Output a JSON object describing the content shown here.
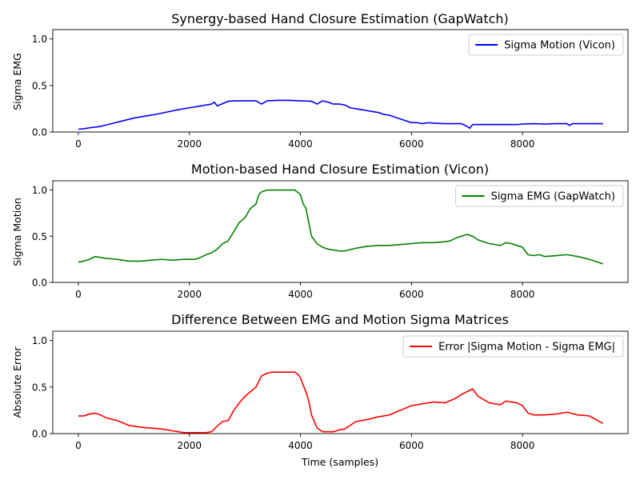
{
  "chart_data": [
    {
      "type": "line",
      "title": "Synergy-based Hand Closure Estimation (GapWatch)",
      "xlabel": "",
      "ylabel": "Sigma EMG",
      "xlim": [
        -460,
        9900
      ],
      "ylim": [
        0,
        1.1
      ],
      "xticks": [
        "0",
        "2000",
        "4000",
        "6000",
        "8000"
      ],
      "yticks": [
        "0.0",
        "0.5",
        "1.0"
      ],
      "legend_position": "upper right",
      "series": [
        {
          "name": "Sigma Motion (Vicon)",
          "color": "#0000ff",
          "x": [
            0,
            100,
            200,
            400,
            600,
            800,
            1000,
            1200,
            1400,
            1600,
            1800,
            2000,
            2200,
            2400,
            2450,
            2500,
            2600,
            2700,
            2800,
            3000,
            3200,
            3300,
            3400,
            3600,
            3800,
            4000,
            4200,
            4300,
            4400,
            4500,
            4600,
            4700,
            4800,
            4900,
            5000,
            5100,
            5200,
            5300,
            5400,
            5500,
            5600,
            5700,
            5800,
            5900,
            6000,
            6100,
            6200,
            6300,
            6400,
            6600,
            6800,
            6900,
            7000,
            7050,
            7100,
            7300,
            7500,
            7700,
            7900,
            8000,
            8200,
            8400,
            8600,
            8800,
            8850,
            8900,
            9000,
            9200,
            9450
          ],
          "y": [
            0.03,
            0.035,
            0.045,
            0.06,
            0.09,
            0.12,
            0.15,
            0.17,
            0.19,
            0.215,
            0.24,
            0.26,
            0.28,
            0.3,
            0.32,
            0.28,
            0.305,
            0.33,
            0.335,
            0.335,
            0.335,
            0.3,
            0.335,
            0.34,
            0.34,
            0.335,
            0.33,
            0.3,
            0.335,
            0.32,
            0.3,
            0.3,
            0.29,
            0.26,
            0.25,
            0.24,
            0.23,
            0.22,
            0.21,
            0.19,
            0.18,
            0.16,
            0.14,
            0.12,
            0.1,
            0.1,
            0.09,
            0.1,
            0.095,
            0.09,
            0.09,
            0.09,
            0.06,
            0.04,
            0.08,
            0.08,
            0.08,
            0.08,
            0.08,
            0.085,
            0.09,
            0.085,
            0.09,
            0.09,
            0.07,
            0.09,
            0.09,
            0.09,
            0.09
          ]
        }
      ]
    },
    {
      "type": "line",
      "title": "Motion-based Hand Closure Estimation (Vicon)",
      "xlabel": "",
      "ylabel": "Sigma Motion",
      "xlim": [
        -460,
        9900
      ],
      "ylim": [
        0,
        1.1
      ],
      "xticks": [
        "0",
        "2000",
        "4000",
        "6000",
        "8000"
      ],
      "yticks": [
        "0.0",
        "0.5",
        "1.0"
      ],
      "legend_position": "upper right",
      "series": [
        {
          "name": "Sigma EMG (GapWatch)",
          "color": "#008000",
          "x": [
            0,
            100,
            200,
            300,
            400,
            500,
            700,
            900,
            1100,
            1300,
            1500,
            1700,
            1900,
            2100,
            2200,
            2300,
            2400,
            2500,
            2600,
            2700,
            2800,
            2900,
            3000,
            3100,
            3200,
            3250,
            3300,
            3400,
            3500,
            3600,
            3700,
            3800,
            3900,
            4000,
            4050,
            4100,
            4150,
            4200,
            4300,
            4400,
            4500,
            4600,
            4700,
            4800,
            5000,
            5200,
            5400,
            5600,
            5800,
            6000,
            6200,
            6400,
            6600,
            6700,
            6800,
            6900,
            7000,
            7100,
            7200,
            7400,
            7600,
            7700,
            7800,
            7900,
            8000,
            8100,
            8200,
            8300,
            8400,
            8600,
            8800,
            9000,
            9200,
            9450
          ],
          "y": [
            0.22,
            0.23,
            0.25,
            0.28,
            0.27,
            0.26,
            0.25,
            0.23,
            0.23,
            0.24,
            0.25,
            0.24,
            0.25,
            0.25,
            0.27,
            0.3,
            0.32,
            0.36,
            0.42,
            0.45,
            0.55,
            0.65,
            0.7,
            0.8,
            0.85,
            0.95,
            0.98,
            1.0,
            1.0,
            1.0,
            1.0,
            1.0,
            1.0,
            0.95,
            0.85,
            0.8,
            0.65,
            0.5,
            0.42,
            0.38,
            0.36,
            0.35,
            0.34,
            0.34,
            0.37,
            0.39,
            0.4,
            0.4,
            0.41,
            0.42,
            0.43,
            0.43,
            0.44,
            0.45,
            0.48,
            0.5,
            0.52,
            0.5,
            0.46,
            0.42,
            0.4,
            0.43,
            0.42,
            0.4,
            0.38,
            0.3,
            0.29,
            0.3,
            0.28,
            0.29,
            0.3,
            0.28,
            0.25,
            0.2
          ]
        }
      ]
    },
    {
      "type": "line",
      "title": "Difference Between EMG and Motion Sigma Matrices",
      "xlabel": "Time (samples)",
      "ylabel": "Absolute Error",
      "xlim": [
        -460,
        9900
      ],
      "ylim": [
        0,
        1.1
      ],
      "xticks": [
        "0",
        "2000",
        "4000",
        "6000",
        "8000"
      ],
      "yticks": [
        "0.0",
        "0.5",
        "1.0"
      ],
      "legend_position": "upper right",
      "series": [
        {
          "name": "Error |Sigma Motion - Sigma EMG|",
          "color": "#ff0000",
          "x": [
            0,
            100,
            200,
            300,
            400,
            500,
            700,
            900,
            1100,
            1300,
            1500,
            1700,
            1900,
            2100,
            2300,
            2400,
            2500,
            2600,
            2700,
            2800,
            2900,
            3000,
            3100,
            3200,
            3300,
            3400,
            3500,
            3600,
            3700,
            3800,
            3900,
            3950,
            4000,
            4050,
            4100,
            4150,
            4200,
            4300,
            4400,
            4500,
            4600,
            4700,
            4800,
            5000,
            5200,
            5400,
            5600,
            5800,
            6000,
            6200,
            6400,
            6600,
            6800,
            6900,
            7000,
            7100,
            7200,
            7400,
            7600,
            7700,
            7800,
            7900,
            8000,
            8100,
            8200,
            8400,
            8600,
            8800,
            9000,
            9200,
            9450
          ],
          "y": [
            0.19,
            0.19,
            0.21,
            0.22,
            0.2,
            0.17,
            0.14,
            0.09,
            0.07,
            0.06,
            0.05,
            0.03,
            0.01,
            0.01,
            0.01,
            0.02,
            0.08,
            0.13,
            0.14,
            0.25,
            0.33,
            0.4,
            0.45,
            0.5,
            0.62,
            0.65,
            0.66,
            0.66,
            0.66,
            0.66,
            0.66,
            0.64,
            0.6,
            0.52,
            0.45,
            0.35,
            0.2,
            0.06,
            0.02,
            0.02,
            0.02,
            0.04,
            0.05,
            0.13,
            0.15,
            0.18,
            0.2,
            0.25,
            0.3,
            0.32,
            0.34,
            0.33,
            0.38,
            0.42,
            0.45,
            0.48,
            0.4,
            0.33,
            0.31,
            0.35,
            0.34,
            0.33,
            0.3,
            0.22,
            0.2,
            0.2,
            0.21,
            0.23,
            0.2,
            0.19,
            0.11
          ]
        }
      ]
    }
  ]
}
